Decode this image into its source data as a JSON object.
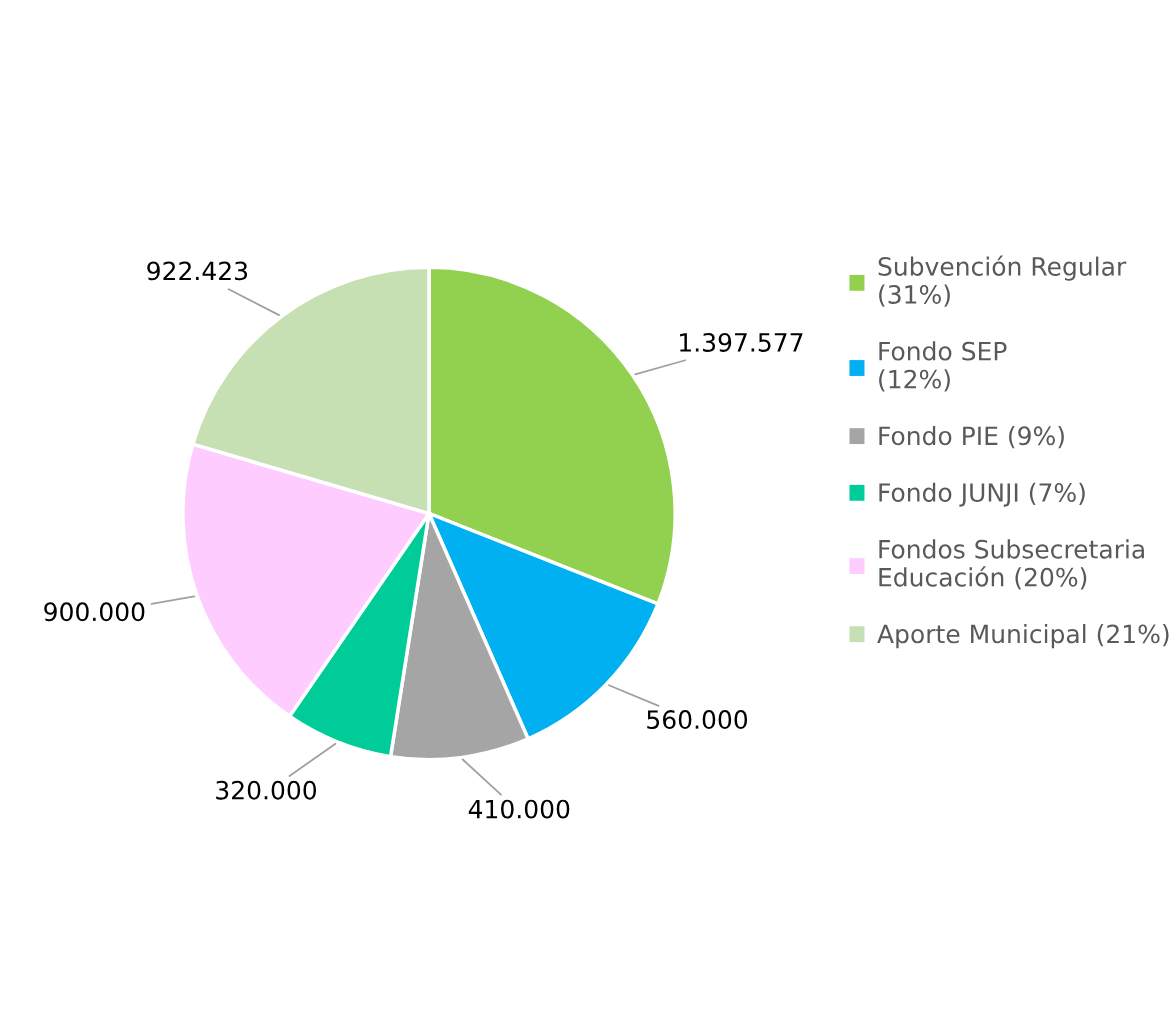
{
  "chart_data": {
    "type": "pie",
    "categories": [
      "Subvención Regular\n(31%)",
      "Fondo SEP\n(12%)",
      "Fondo PIE (9%)",
      "Fondo JUNJI (7%)",
      "Fondos Subsecretaria\nEducación (20%)",
      "Aporte Municipal (21%)"
    ],
    "values": [
      1397577,
      560000,
      410000,
      320000,
      900000,
      922423
    ],
    "value_labels": [
      "1.397.577",
      "560.000",
      "410.000",
      "320.000",
      "900.000",
      "922.423"
    ],
    "colors": [
      "#92d050",
      "#00b0f0",
      "#a5a5a5",
      "#00cc99",
      "#ffccff",
      "#c6e0b4"
    ],
    "legend": "right"
  }
}
